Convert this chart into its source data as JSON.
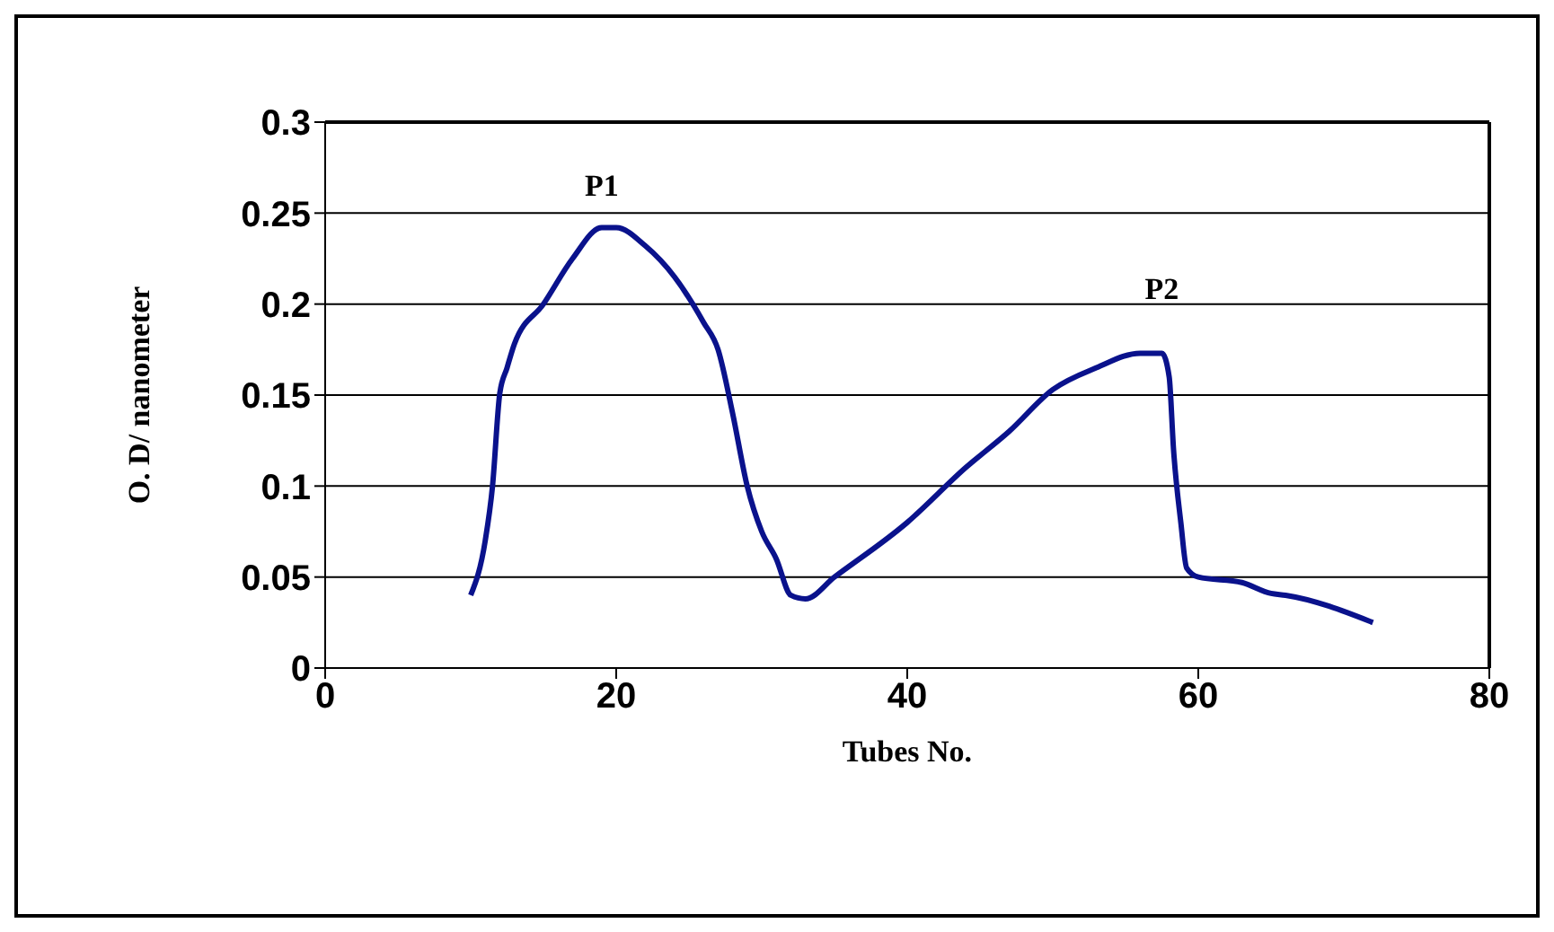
{
  "chart_data": {
    "type": "line",
    "xlabel": "Tubes No.",
    "ylabel": "O. D/ nanometer",
    "xlim": [
      0,
      80
    ],
    "xticks": [
      0,
      20,
      40,
      60,
      80
    ],
    "ylim": [
      0,
      0.3
    ],
    "yticks": [
      0,
      0.05,
      0.1,
      0.15,
      0.2,
      0.25,
      0.3
    ],
    "grid": "y",
    "marker": "none",
    "line_style": "solid",
    "annotations": [
      {
        "text": "P1",
        "x": 19,
        "y": 0.242
      },
      {
        "text": "P2",
        "x": 57.5,
        "y": 0.173
      }
    ],
    "series": [
      {
        "color": "#0a128c",
        "x": [
          10,
          11,
          11.5,
          12,
          12.5,
          13,
          15,
          17,
          19,
          20,
          22,
          24,
          26,
          27,
          28,
          29,
          30,
          31,
          32,
          33,
          35,
          40,
          44,
          47,
          50,
          53,
          56,
          57.5,
          58,
          58.3,
          58.8,
          59.2,
          60,
          63,
          65,
          66,
          72
        ],
        "values": [
          0.04,
          0.07,
          0.1,
          0.151,
          0.165,
          0.178,
          0.2,
          0.225,
          0.242,
          0.242,
          0.232,
          0.215,
          0.19,
          0.175,
          0.14,
          0.1,
          0.075,
          0.06,
          0.04,
          0.038,
          0.05,
          0.08,
          0.11,
          0.13,
          0.153,
          0.165,
          0.173,
          0.173,
          0.16,
          0.12,
          0.08,
          0.055,
          0.05,
          0.047,
          0.041,
          0.04,
          0.025
        ]
      }
    ]
  }
}
